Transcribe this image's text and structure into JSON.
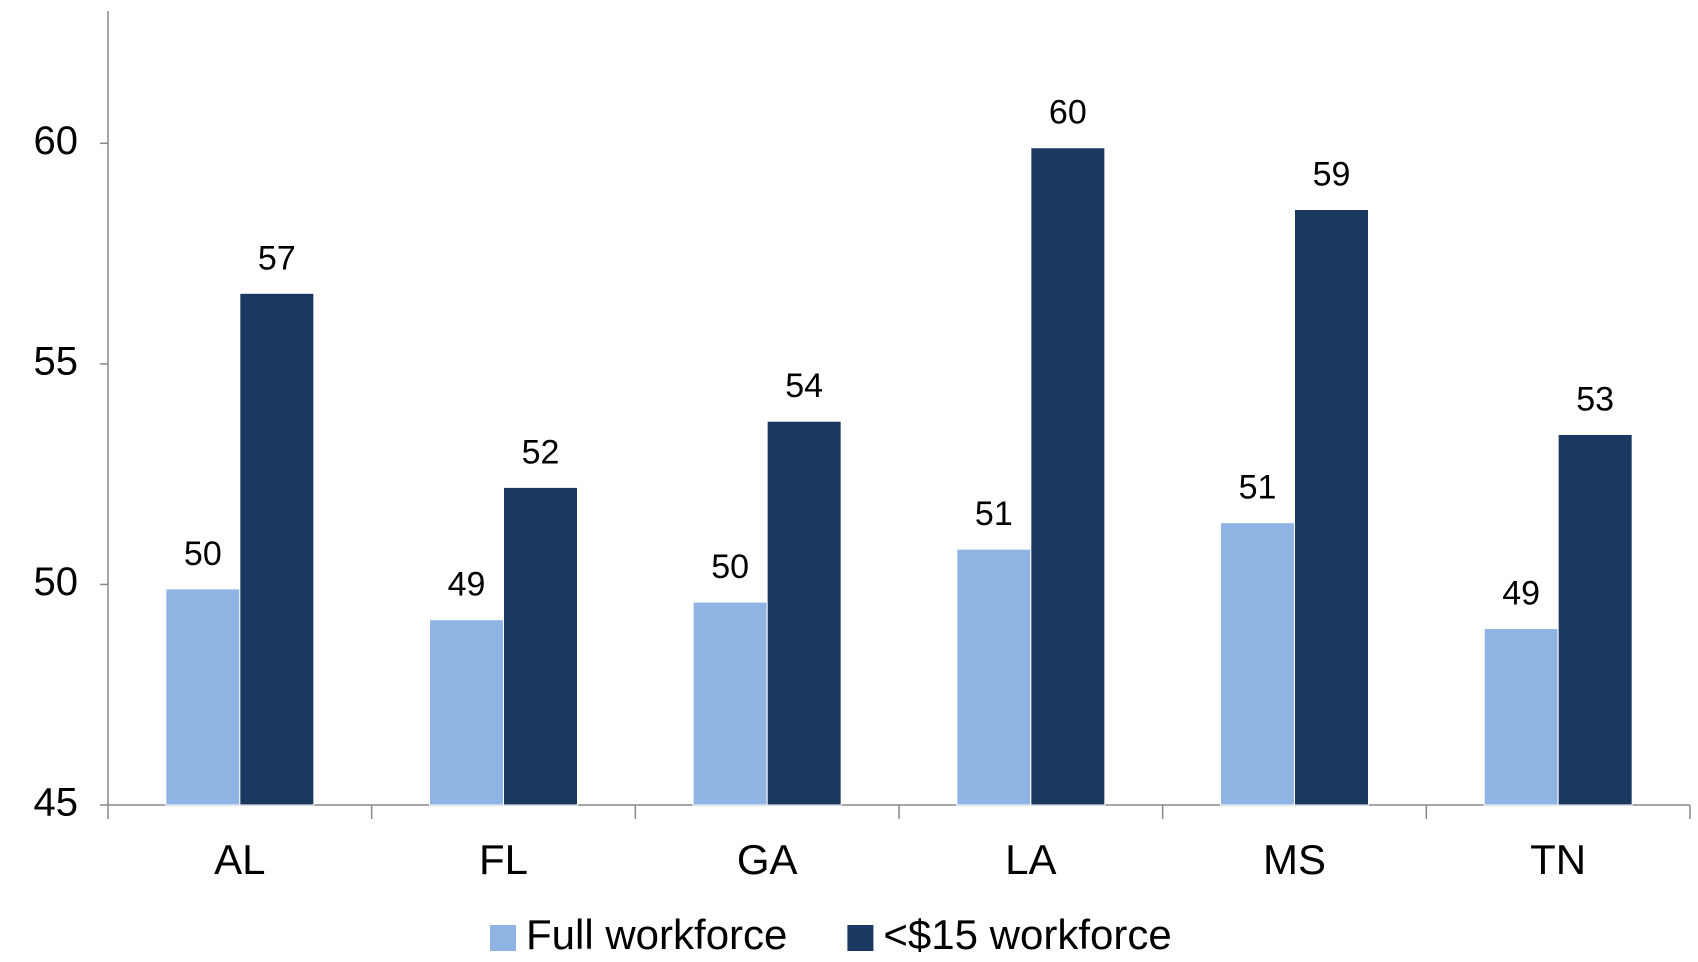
{
  "chart_data": {
    "type": "bar",
    "categories": [
      "AL",
      "FL",
      "GA",
      "LA",
      "MS",
      "TN"
    ],
    "series": [
      {
        "name": "Full workforce",
        "color": "#8fb4e3",
        "values": [
          49.9,
          49.2,
          49.6,
          50.8,
          51.4,
          49.0
        ],
        "value_labels": [
          "50",
          "49",
          "50",
          "51",
          "51",
          "49"
        ]
      },
      {
        "name": "<$15 workforce",
        "color": "#1b3860",
        "values": [
          56.6,
          52.2,
          53.7,
          59.9,
          58.5,
          53.4
        ],
        "value_labels": [
          "57",
          "52",
          "54",
          "60",
          "59",
          "53"
        ]
      }
    ],
    "ylim": [
      45,
      63
    ],
    "yticks": [
      45,
      50,
      55,
      60
    ],
    "grid": false,
    "legend": "bottom"
  }
}
